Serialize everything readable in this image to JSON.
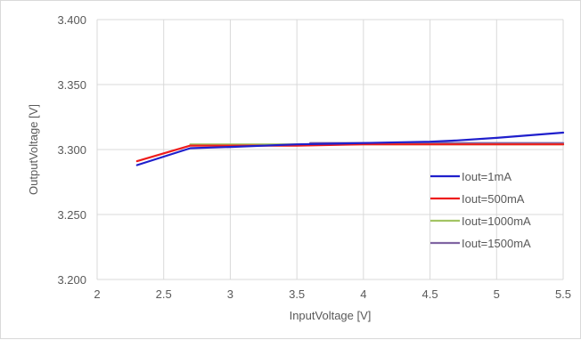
{
  "chart_data": {
    "type": "line",
    "title": "",
    "xlabel": "InputVoltage [V]",
    "ylabel": "OutputVoltage [V]",
    "xlim": [
      2,
      5.5
    ],
    "ylim": [
      3.2,
      3.4
    ],
    "x_ticks": [
      "2",
      "2.5",
      "3",
      "3.5",
      "4",
      "4.5",
      "5",
      "5.5"
    ],
    "y_ticks": [
      "3.200",
      "3.250",
      "3.300",
      "3.350",
      "3.400"
    ],
    "grid": true,
    "legend_position": "right",
    "series": [
      {
        "name": "Iout=1mA",
        "color": "#1f1fcc",
        "x": [
          2.3,
          2.7,
          3.0,
          3.5,
          4.0,
          4.5,
          4.7,
          5.0,
          5.5
        ],
        "y": [
          3.288,
          3.301,
          3.302,
          3.304,
          3.305,
          3.306,
          3.307,
          3.309,
          3.313
        ]
      },
      {
        "name": "Iout=500mA",
        "color": "#ee1c1c",
        "x": [
          2.3,
          2.7,
          3.0,
          3.5,
          4.0,
          4.5,
          5.0,
          5.5
        ],
        "y": [
          3.291,
          3.303,
          3.303,
          3.303,
          3.304,
          3.304,
          3.304,
          3.304
        ]
      },
      {
        "name": "Iout=1000mA",
        "color": "#a3c463",
        "x": [
          2.7,
          3.0,
          3.5,
          4.0,
          4.5,
          5.0,
          5.5
        ],
        "y": [
          3.304,
          3.304,
          3.304,
          3.304,
          3.304,
          3.304,
          3.304
        ]
      },
      {
        "name": "Iout=1500mA",
        "color": "#8064a2",
        "x": [
          3.6,
          4.0,
          4.5,
          5.0,
          5.5
        ],
        "y": [
          3.305,
          3.305,
          3.305,
          3.305,
          3.305
        ]
      }
    ]
  }
}
